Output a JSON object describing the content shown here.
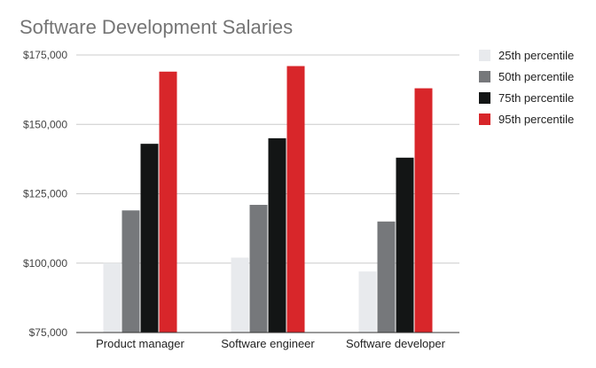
{
  "chart_data": {
    "type": "bar",
    "title": "Software Development Salaries",
    "xlabel": "",
    "ylabel": "",
    "categories": [
      "Product manager",
      "Software engineer",
      "Software developer"
    ],
    "series": [
      {
        "name": "25th percentile",
        "color": "#e8eaed",
        "values": [
          100000,
          102000,
          97000
        ]
      },
      {
        "name": "50th percentile",
        "color": "#76787b",
        "values": [
          119000,
          121000,
          115000
        ]
      },
      {
        "name": "75th percentile",
        "color": "#131515",
        "values": [
          143000,
          145000,
          138000
        ]
      },
      {
        "name": "95th percentile",
        "color": "#d8262a",
        "values": [
          169000,
          171000,
          163000
        ]
      }
    ],
    "ylim": [
      75000,
      175000
    ],
    "yticks": [
      75000,
      100000,
      125000,
      150000,
      175000
    ],
    "ytick_labels": [
      "$75,000",
      "$100,000",
      "$125,000",
      "$150,000",
      "$175,000"
    ],
    "grid": true,
    "legend_position": "right"
  }
}
